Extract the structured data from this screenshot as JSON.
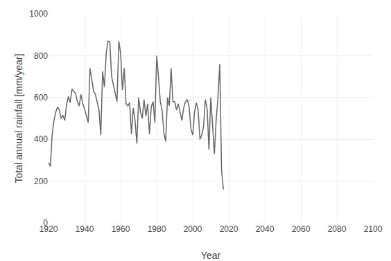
{
  "chart_data": {
    "type": "line",
    "xlabel": "Year",
    "ylabel": "Total annual rainfall [mm/year]",
    "x": [
      1920,
      1921,
      1922,
      1923,
      1924,
      1925,
      1926,
      1927,
      1928,
      1929,
      1930,
      1931,
      1932,
      1933,
      1934,
      1935,
      1936,
      1937,
      1938,
      1939,
      1940,
      1941,
      1942,
      1943,
      1944,
      1945,
      1946,
      1947,
      1948,
      1949,
      1950,
      1951,
      1952,
      1953,
      1954,
      1955,
      1956,
      1957,
      1958,
      1959,
      1960,
      1961,
      1962,
      1963,
      1964,
      1965,
      1966,
      1967,
      1968,
      1969,
      1970,
      1971,
      1972,
      1973,
      1974,
      1975,
      1976,
      1977,
      1978,
      1979,
      1980,
      1981,
      1982,
      1983,
      1984,
      1985,
      1986,
      1987,
      1988,
      1989,
      1990,
      1991,
      1992,
      1993,
      1994,
      1995,
      1996,
      1997,
      1998,
      1999,
      2000,
      2001,
      2002,
      2003,
      2004,
      2005,
      2006,
      2007,
      2008,
      2009,
      2010,
      2011,
      2012,
      2013,
      2014,
      2015,
      2016,
      2017
    ],
    "values": [
      290,
      270,
      420,
      490,
      530,
      555,
      540,
      500,
      515,
      490,
      565,
      605,
      575,
      640,
      630,
      620,
      580,
      560,
      615,
      570,
      545,
      510,
      480,
      740,
      690,
      630,
      615,
      575,
      540,
      420,
      725,
      650,
      810,
      870,
      865,
      700,
      660,
      620,
      580,
      870,
      810,
      635,
      740,
      570,
      560,
      575,
      425,
      550,
      490,
      380,
      600,
      530,
      500,
      590,
      510,
      570,
      425,
      555,
      580,
      480,
      800,
      700,
      580,
      540,
      430,
      390,
      600,
      560,
      740,
      580,
      580,
      540,
      570,
      530,
      490,
      550,
      580,
      590,
      555,
      450,
      420,
      530,
      575,
      540,
      400,
      420,
      460,
      590,
      545,
      350,
      600,
      470,
      330,
      490,
      600,
      760,
      250,
      160
    ],
    "color": "#666666",
    "xlim": [
      1920,
      2100
    ],
    "ylim": [
      0,
      1000
    ],
    "xticks": [
      1920,
      1940,
      1960,
      1980,
      2000,
      2020,
      2040,
      2060,
      2080,
      2100
    ],
    "yticks": [
      0,
      200,
      400,
      600,
      800,
      1000
    ],
    "grid": true
  }
}
